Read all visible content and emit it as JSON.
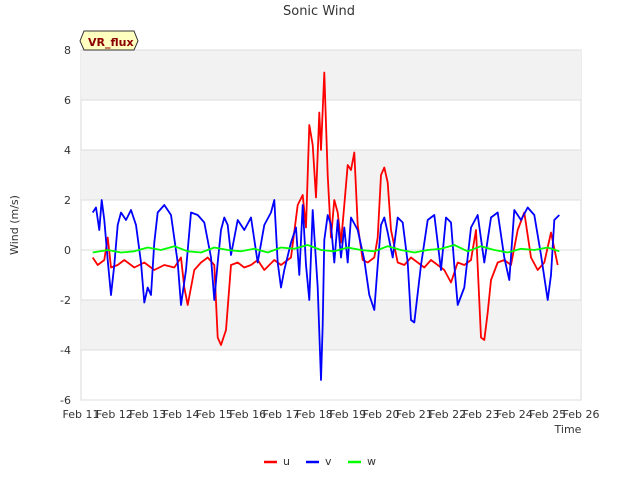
{
  "chart_data": {
    "type": "line",
    "title": "Sonic Wind",
    "xlabel": "Time",
    "ylabel": "Wind (m/s)",
    "badge": "VR_flux",
    "xlim": [
      11,
      26
    ],
    "ylim": [
      -6,
      8
    ],
    "x_ticks": [
      11,
      12,
      13,
      14,
      15,
      16,
      17,
      18,
      19,
      20,
      21,
      22,
      23,
      24,
      25,
      26
    ],
    "x_tick_labels": [
      "Feb 11",
      "Feb 12",
      "Feb 13",
      "Feb 14",
      "Feb 15",
      "Feb 16",
      "Feb 17",
      "Feb 18",
      "Feb 19",
      "Feb 20",
      "Feb 21",
      "Feb 22",
      "Feb 23",
      "Feb 24",
      "Feb 25",
      "Feb 26"
    ],
    "y_ticks": [
      -6,
      -4,
      -2,
      0,
      2,
      4,
      6,
      8
    ],
    "y_tick_labels": [
      "-6",
      "-4",
      "-2",
      "0",
      "2",
      "4",
      "6",
      "8"
    ],
    "bands": [
      [
        -4,
        -2
      ],
      [
        2,
        4
      ],
      [
        6,
        8
      ]
    ],
    "series": [
      {
        "name": "u",
        "color": "#ff0000",
        "x": [
          11.35,
          11.5,
          11.7,
          11.8,
          11.9,
          12.1,
          12.3,
          12.6,
          12.9,
          13.2,
          13.5,
          13.8,
          14.0,
          14.1,
          14.2,
          14.4,
          14.6,
          14.8,
          15.0,
          15.1,
          15.2,
          15.35,
          15.5,
          15.7,
          15.9,
          16.1,
          16.3,
          16.5,
          16.8,
          17.0,
          17.3,
          17.5,
          17.65,
          17.75,
          17.85,
          17.95,
          18.05,
          18.15,
          18.2,
          18.3,
          18.4,
          18.5,
          18.6,
          18.7,
          18.8,
          18.9,
          19.0,
          19.1,
          19.2,
          19.3,
          19.45,
          19.6,
          19.8,
          19.9,
          20.0,
          20.1,
          20.2,
          20.3,
          20.5,
          20.7,
          20.9,
          21.1,
          21.3,
          21.5,
          21.7,
          21.9,
          22.1,
          22.3,
          22.5,
          22.7,
          22.85,
          23.0,
          23.1,
          23.2,
          23.3,
          23.5,
          23.7,
          23.9,
          24.1,
          24.3,
          24.5,
          24.7,
          24.9,
          25.1,
          25.3
        ],
        "y": [
          -0.3,
          -0.6,
          -0.4,
          0.5,
          -0.7,
          -0.6,
          -0.4,
          -0.7,
          -0.5,
          -0.8,
          -0.6,
          -0.7,
          -0.3,
          -1.5,
          -2.2,
          -0.8,
          -0.5,
          -0.3,
          -0.6,
          -3.5,
          -3.8,
          -3.2,
          -0.6,
          -0.5,
          -0.7,
          -0.6,
          -0.4,
          -0.8,
          -0.4,
          -0.6,
          -0.3,
          1.8,
          2.2,
          0.9,
          5.0,
          4.2,
          2.1,
          5.5,
          4.0,
          7.1,
          3.0,
          0.5,
          2.0,
          1.5,
          0.3,
          1.8,
          3.4,
          3.2,
          3.9,
          1.0,
          -0.4,
          -0.5,
          -0.3,
          0.5,
          3.0,
          3.3,
          2.7,
          0.8,
          -0.5,
          -0.6,
          -0.3,
          -0.5,
          -0.7,
          -0.4,
          -0.6,
          -0.8,
          -1.3,
          -0.5,
          -0.6,
          -0.4,
          0.8,
          -3.5,
          -3.6,
          -2.5,
          -1.2,
          -0.5,
          -0.4,
          -0.6,
          0.8,
          1.5,
          -0.3,
          -0.8,
          -0.5,
          0.7,
          -0.6
        ]
      },
      {
        "name": "v",
        "color": "#0000ff",
        "x": [
          11.35,
          11.45,
          11.55,
          11.62,
          11.7,
          11.8,
          11.9,
          12.0,
          12.1,
          12.2,
          12.35,
          12.5,
          12.65,
          12.8,
          12.9,
          13.0,
          13.1,
          13.2,
          13.3,
          13.5,
          13.7,
          13.9,
          14.0,
          14.15,
          14.3,
          14.5,
          14.7,
          14.9,
          15.0,
          15.1,
          15.2,
          15.3,
          15.4,
          15.5,
          15.7,
          15.9,
          16.1,
          16.3,
          16.5,
          16.7,
          16.8,
          16.9,
          17.0,
          17.1,
          17.3,
          17.45,
          17.55,
          17.65,
          17.75,
          17.85,
          17.95,
          18.0,
          18.1,
          18.2,
          18.25,
          18.3,
          18.4,
          18.5,
          18.6,
          18.7,
          18.8,
          18.9,
          19.0,
          19.1,
          19.3,
          19.5,
          19.65,
          19.8,
          19.9,
          20.0,
          20.1,
          20.2,
          20.35,
          20.5,
          20.65,
          20.8,
          20.9,
          21.0,
          21.2,
          21.4,
          21.6,
          21.8,
          21.95,
          22.1,
          22.2,
          22.3,
          22.5,
          22.7,
          22.9,
          23.1,
          23.3,
          23.5,
          23.7,
          23.85,
          24.0,
          24.2,
          24.4,
          24.6,
          24.8,
          25.0,
          25.1,
          25.2,
          25.35
        ],
        "y": [
          1.5,
          1.7,
          0.8,
          2.0,
          1.2,
          -0.4,
          -1.8,
          -0.6,
          1.0,
          1.5,
          1.2,
          1.6,
          1.0,
          -0.5,
          -2.1,
          -1.5,
          -1.8,
          0.3,
          1.5,
          1.8,
          1.4,
          -0.5,
          -2.2,
          -0.8,
          1.5,
          1.4,
          1.1,
          -0.3,
          -2.0,
          -0.5,
          0.8,
          1.3,
          1.0,
          -0.2,
          1.2,
          0.8,
          1.3,
          -0.5,
          1.0,
          1.5,
          2.0,
          -0.5,
          -1.5,
          -0.8,
          0.3,
          0.9,
          -1.0,
          1.8,
          -0.6,
          -2.0,
          1.6,
          0.6,
          -1.5,
          -5.2,
          -3.0,
          0.4,
          1.4,
          1.0,
          -0.5,
          1.2,
          -0.3,
          0.9,
          -0.5,
          1.3,
          0.8,
          -0.4,
          -1.8,
          -2.4,
          -0.6,
          1.0,
          1.3,
          0.7,
          -0.3,
          1.3,
          1.1,
          -0.5,
          -2.8,
          -2.9,
          -0.6,
          1.2,
          1.4,
          -0.8,
          1.3,
          1.1,
          -0.6,
          -2.2,
          -1.5,
          0.9,
          1.4,
          -0.5,
          1.3,
          1.5,
          -0.3,
          -1.2,
          1.6,
          1.2,
          1.7,
          1.4,
          -0.2,
          -2.0,
          -1.0,
          1.2,
          1.4
        ]
      },
      {
        "name": "w",
        "color": "#00ff00",
        "x": [
          11.35,
          11.8,
          12.2,
          12.6,
          13.0,
          13.4,
          13.8,
          14.2,
          14.6,
          15.0,
          15.4,
          15.8,
          16.2,
          16.6,
          17.0,
          17.4,
          17.8,
          18.2,
          18.6,
          19.0,
          19.4,
          19.8,
          20.2,
          20.6,
          21.0,
          21.4,
          21.8,
          22.2,
          22.6,
          23.0,
          23.4,
          23.8,
          24.2,
          24.6,
          25.0,
          25.35
        ],
        "y": [
          -0.1,
          0.0,
          -0.1,
          -0.05,
          0.1,
          0.0,
          0.15,
          -0.05,
          -0.1,
          0.1,
          0.0,
          -0.05,
          0.05,
          -0.1,
          0.1,
          0.05,
          0.2,
          0.0,
          -0.05,
          0.1,
          0.0,
          -0.05,
          0.15,
          0.0,
          -0.1,
          0.0,
          0.05,
          0.2,
          -0.05,
          0.15,
          0.0,
          -0.1,
          0.05,
          0.0,
          0.1,
          -0.05
        ]
      }
    ]
  }
}
